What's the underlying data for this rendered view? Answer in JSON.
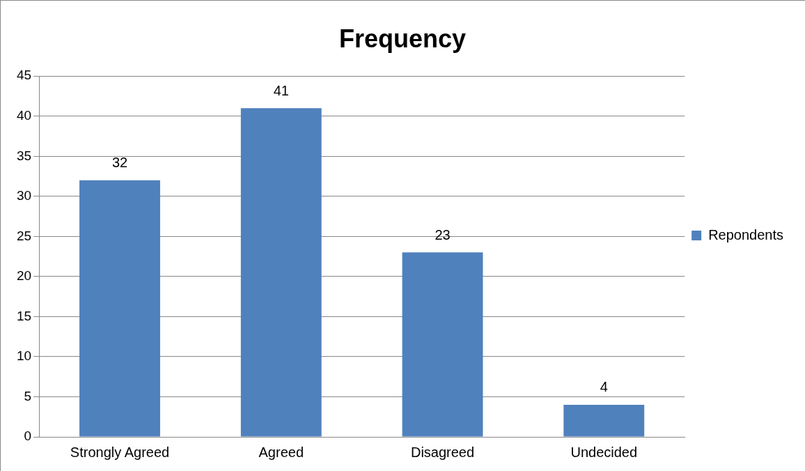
{
  "chart_data": {
    "type": "bar",
    "title": "Frequency",
    "categories": [
      "Strongly Agreed",
      "Agreed",
      "Disagreed",
      "Undecided"
    ],
    "series": [
      {
        "name": "Repondents",
        "color": "#4f81bd",
        "values": [
          32,
          41,
          23,
          4
        ]
      }
    ],
    "ylim": [
      0,
      45
    ],
    "yticks": [
      0,
      5,
      10,
      15,
      20,
      25,
      30,
      35,
      40,
      45
    ],
    "grid": "y",
    "legend": "right",
    "data_labels": true
  }
}
